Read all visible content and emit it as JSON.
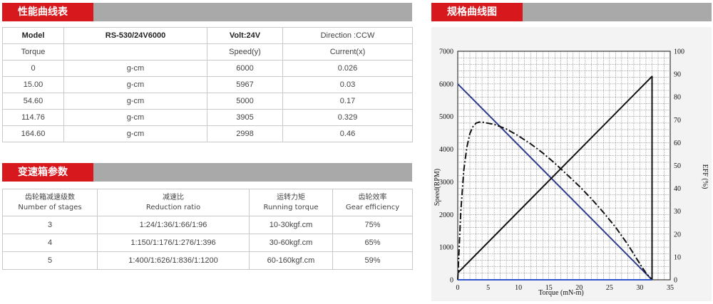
{
  "performance": {
    "title": "性能曲线表",
    "header": {
      "c1": "Model",
      "c2": "RS-530/24V6000",
      "c3": "Volt:24V",
      "c4": "Direction :CCW"
    },
    "subheader": {
      "c1": "Torque",
      "c2": "",
      "c3": "Speed(y)",
      "c4": "Current(x)"
    },
    "rows": [
      {
        "torque": "0",
        "unit": "g-cm",
        "speed": "6000",
        "current": "0.026"
      },
      {
        "torque": "15.00",
        "unit": "g-cm",
        "speed": "5967",
        "current": "0.03"
      },
      {
        "torque": "54.60",
        "unit": "g-cm",
        "speed": "5000",
        "current": "0.17"
      },
      {
        "torque": "114.76",
        "unit": "g-cm",
        "speed": "3905",
        "current": "0.329"
      },
      {
        "torque": "164.60",
        "unit": "g-cm",
        "speed": "2998",
        "current": "0.46"
      }
    ]
  },
  "gearbox": {
    "title": "变速箱参数",
    "headers": [
      {
        "cn": "齿轮箱减速级数",
        "en": "Number of stages"
      },
      {
        "cn": "减速比",
        "en": "Reduction ratio"
      },
      {
        "cn": "运转力矩",
        "en": "Running torque"
      },
      {
        "cn": "齿轮效率",
        "en": "Gear efficiency"
      }
    ],
    "rows": [
      {
        "stages": "3",
        "ratio": "1:24/1:36/1:66/1:96",
        "torque": "10-30kgf.cm",
        "efficiency": "75%"
      },
      {
        "stages": "4",
        "ratio": "1:150/1:176/1:276/1:396",
        "torque": "30-60kgf.cm",
        "efficiency": "65%"
      },
      {
        "stages": "5",
        "ratio": "1:400/1:626/1:836/1:1200",
        "torque": "60-160kgf.cm",
        "efficiency": "59%"
      }
    ]
  },
  "curve": {
    "title": "规格曲线图"
  },
  "chart_data": {
    "type": "line",
    "xlabel": "Torque (mN-m)",
    "ylabel": "Speed(RPM)",
    "y2label": "EFF (%)",
    "xlim": [
      0,
      35
    ],
    "ylim": [
      0,
      7000
    ],
    "y2lim": [
      0,
      100
    ],
    "x_ticks": [
      "0",
      "5",
      "10",
      "15",
      "20",
      "25",
      "30",
      "35"
    ],
    "y_ticks": [
      "0",
      "1000",
      "2000",
      "3000",
      "4000",
      "5000",
      "6000",
      "7000"
    ],
    "y2_ticks": [
      "0",
      "10",
      "20",
      "30",
      "40",
      "50",
      "60",
      "70",
      "80",
      "90",
      "100"
    ],
    "grid": true,
    "series": [
      {
        "axis": "left",
        "color": "#2e3a8c",
        "style": "solid",
        "x": [
          0,
          32
        ],
        "y": [
          6000,
          0
        ]
      },
      {
        "axis": "right",
        "color": "#111111",
        "style": "solid",
        "x": [
          0,
          32,
          32
        ],
        "y": [
          3,
          89,
          0
        ]
      },
      {
        "axis": "right",
        "color": "#111111",
        "style": "dashdot",
        "x": [
          0,
          0.5,
          1,
          1.5,
          2,
          2.5,
          3,
          3.5,
          4,
          6,
          8,
          10,
          12,
          14,
          16,
          18,
          20,
          22,
          24,
          26,
          28,
          30,
          31,
          32
        ],
        "y": [
          0,
          30,
          48,
          58,
          64,
          67,
          68.5,
          69,
          69,
          68,
          66,
          63,
          59.5,
          55.5,
          51,
          46,
          41,
          35.5,
          29.5,
          23,
          15.5,
          7,
          3,
          0
        ]
      },
      {
        "axis": "left",
        "color": "#3355cc",
        "style": "solid",
        "x": [
          0,
          32
        ],
        "y": [
          0,
          0
        ]
      }
    ]
  }
}
